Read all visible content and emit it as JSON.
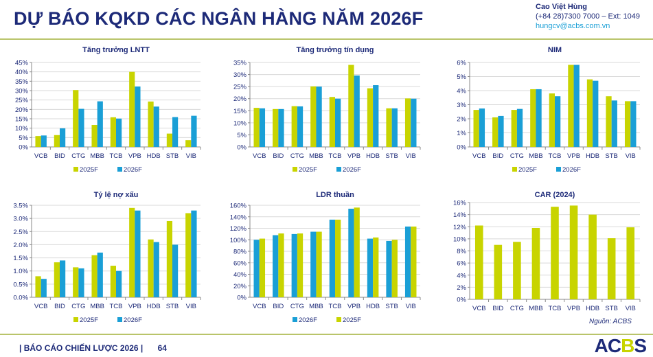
{
  "header": {
    "title": "DỰ BÁO KQKD CÁC NGÂN HÀNG NĂM 2026F",
    "contact_name": "Cao Việt Hùng",
    "contact_phone": "(+84 28)7300 7000 – Ext: 1049",
    "contact_email": "hungcv@acbs.com.vn"
  },
  "footer": {
    "report": "| BÁO CÁO CHIẾN LƯỢC 2026 |",
    "page": "64",
    "logo": "ACBS",
    "source": "Nguồn: ACBS"
  },
  "colors": {
    "2025F": "#c8d400",
    "2026F": "#1a9fd6",
    "text": "#1d2a78"
  },
  "chart_data": [
    {
      "type": "bar",
      "title": "Tăng trưởng LNTT",
      "categories": [
        "VCB",
        "BID",
        "CTG",
        "MBB",
        "TCB",
        "VPB",
        "HDB",
        "STB",
        "VIB"
      ],
      "ylim": [
        0,
        45
      ],
      "yticks": [
        0,
        5,
        10,
        15,
        20,
        25,
        30,
        35,
        40,
        45
      ],
      "tick_format": "%0",
      "grid": true,
      "legend": "bottom",
      "series": [
        {
          "name": "2025F",
          "color": "#c8d400",
          "values": [
            5.8,
            6.3,
            30.3,
            11.7,
            15.8,
            40.0,
            24.2,
            7.1,
            3.6
          ]
        },
        {
          "name": "2026F",
          "color": "#1a9fd6",
          "values": [
            6.1,
            9.9,
            20.3,
            24.3,
            15.1,
            32.2,
            21.5,
            15.9,
            16.6
          ]
        }
      ]
    },
    {
      "type": "bar",
      "title": "Tăng trưởng tín dụng",
      "categories": [
        "VCB",
        "BID",
        "CTG",
        "MBB",
        "TCB",
        "VPB",
        "HDB",
        "STB",
        "VIB"
      ],
      "ylim": [
        0,
        35
      ],
      "yticks": [
        0,
        5,
        10,
        15,
        20,
        25,
        30,
        35
      ],
      "tick_format": "%0",
      "grid": true,
      "legend": "bottom",
      "series": [
        {
          "name": "2025F",
          "color": "#c8d400",
          "values": [
            16.2,
            15.7,
            16.9,
            25.1,
            20.7,
            34.0,
            24.3,
            16.0,
            20.1
          ]
        },
        {
          "name": "2026F",
          "color": "#1a9fd6",
          "values": [
            16.0,
            15.7,
            16.8,
            25.0,
            20.0,
            29.6,
            25.6,
            16.0,
            20.0
          ]
        }
      ]
    },
    {
      "type": "bar",
      "title": "NIM",
      "categories": [
        "VCB",
        "BID",
        "CTG",
        "MBB",
        "TCB",
        "VPB",
        "HDB",
        "STB",
        "VIB"
      ],
      "ylim": [
        0,
        6
      ],
      "yticks": [
        0,
        1,
        2,
        3,
        4,
        5,
        6
      ],
      "tick_format": "%0",
      "grid": true,
      "legend": "bottom",
      "series": [
        {
          "name": "2025F",
          "color": "#c8d400",
          "values": [
            2.63,
            2.1,
            2.63,
            4.1,
            3.8,
            5.83,
            4.8,
            3.6,
            3.25
          ]
        },
        {
          "name": "2026F",
          "color": "#1a9fd6",
          "values": [
            2.73,
            2.2,
            2.7,
            4.1,
            3.6,
            5.83,
            4.7,
            3.3,
            3.25
          ]
        }
      ]
    },
    {
      "type": "bar",
      "title": "Tỷ lệ nợ xấu",
      "categories": [
        "VCB",
        "BID",
        "CTG",
        "MBB",
        "TCB",
        "VPB",
        "HDB",
        "STB",
        "VIB"
      ],
      "ylim": [
        0,
        3.5
      ],
      "yticks": [
        0,
        0.5,
        1,
        1.5,
        2,
        2.5,
        3,
        3.5
      ],
      "tick_format": "%1",
      "grid": true,
      "legend": "bottom",
      "series": [
        {
          "name": "2025F",
          "color": "#c8d400",
          "values": [
            0.8,
            1.33,
            1.14,
            1.6,
            1.2,
            3.4,
            2.2,
            2.9,
            3.2
          ]
        },
        {
          "name": "2026F",
          "color": "#1a9fd6",
          "values": [
            0.7,
            1.4,
            1.1,
            1.7,
            1.0,
            3.3,
            2.1,
            2.0,
            3.3
          ]
        }
      ]
    },
    {
      "type": "bar",
      "title": "LDR thuần",
      "categories": [
        "VCB",
        "BID",
        "CTG",
        "MBB",
        "TCB",
        "VPB",
        "HDB",
        "STB",
        "VIB"
      ],
      "ylim": [
        0,
        160
      ],
      "yticks": [
        0,
        20,
        40,
        60,
        80,
        100,
        120,
        140,
        160
      ],
      "tick_format": "%0",
      "grid": true,
      "legend": "bottom",
      "series": [
        {
          "name": "2026F",
          "color": "#1a9fd6",
          "values": [
            100,
            108,
            110,
            114,
            135,
            154,
            102,
            98,
            123
          ]
        },
        {
          "name": "2025F",
          "color": "#c8d400",
          "values": [
            102,
            111,
            111,
            114,
            135,
            156,
            104,
            100,
            123
          ]
        }
      ]
    },
    {
      "type": "bar",
      "title": "CAR (2024)",
      "categories": [
        "VCB",
        "BID",
        "CTG",
        "MBB",
        "TCB",
        "VPB",
        "HDB",
        "STB",
        "VIB"
      ],
      "ylim": [
        0,
        16
      ],
      "yticks": [
        0,
        2,
        4,
        6,
        8,
        10,
        12,
        14,
        16
      ],
      "tick_format": "%0",
      "grid": true,
      "legend": "none",
      "series": [
        {
          "color": "#c8d400",
          "values": [
            12.2,
            9.0,
            9.5,
            11.8,
            15.3,
            15.5,
            14.0,
            10.1,
            11.9
          ]
        }
      ]
    }
  ]
}
